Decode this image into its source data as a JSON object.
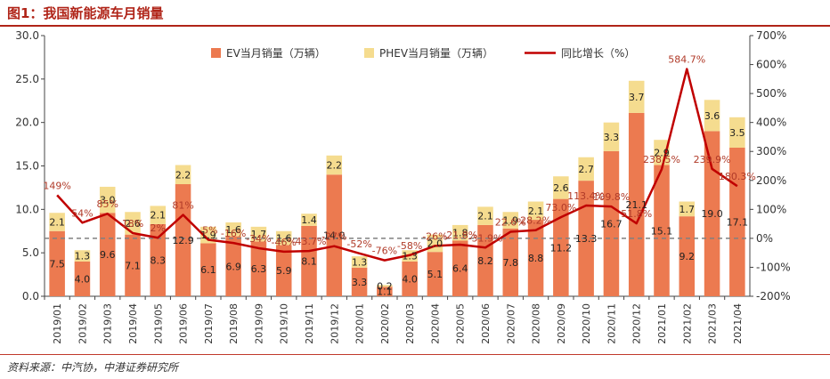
{
  "title": "图1：我国新能源车月销量",
  "source": "资料来源：中汽协，中港证券研究所",
  "colors": {
    "ev": "#ec7a50",
    "phev": "#f5dc8f",
    "growth": "#c00000",
    "zero_line": "#808080",
    "title": "#b02418"
  },
  "chart_data": {
    "type": "bar",
    "stacked": true,
    "categories": [
      "2019/01",
      "2019/02",
      "2019/03",
      "2019/04",
      "2019/05",
      "2019/06",
      "2019/07",
      "2019/08",
      "2019/09",
      "2019/10",
      "2019/11",
      "2019/12",
      "2020/01",
      "2020/02",
      "2020/03",
      "2020/04",
      "2020/05",
      "2020/06",
      "2020/07",
      "2020/08",
      "2020/09",
      "2020/10",
      "2020/11",
      "2020/12",
      "2021/01",
      "2021/02",
      "2021/03",
      "2021/04"
    ],
    "series": [
      {
        "name": "EV当月销量（万辆）",
        "type": "bar",
        "axis": "left",
        "values": [
          7.5,
          4.0,
          9.6,
          7.1,
          8.3,
          12.9,
          6.1,
          6.9,
          6.3,
          5.9,
          8.1,
          14.0,
          3.3,
          1.1,
          4.0,
          5.1,
          6.4,
          8.2,
          7.8,
          8.8,
          11.2,
          13.3,
          16.7,
          21.1,
          15.1,
          9.2,
          19.0,
          17.1
        ],
        "labels": [
          "7.5",
          "4.0",
          "9.6",
          "7.1",
          "8.3",
          "12.9",
          "6.1",
          "6.9",
          "6.3",
          "5.9",
          "8.1",
          "14.0",
          "3.3",
          "1.1",
          "4.0",
          "5.1",
          "6.4",
          "8.2",
          "7.8",
          "8.8",
          "11.2",
          "13.3",
          "16.7",
          "21.1",
          "15.1",
          "9.2",
          "19.0",
          "17.1"
        ]
      },
      {
        "name": "PHEV当月销量（万辆）",
        "type": "bar",
        "axis": "left",
        "values": [
          2.1,
          1.3,
          3.0,
          2.6,
          2.1,
          2.2,
          1.9,
          1.6,
          1.7,
          1.6,
          1.4,
          2.2,
          1.3,
          0.2,
          1.3,
          2.0,
          1.8,
          2.1,
          1.9,
          2.1,
          2.6,
          2.7,
          3.3,
          3.7,
          2.9,
          1.7,
          3.6,
          3.5
        ],
        "labels": [
          "2.1",
          "1.3",
          "3.0",
          "2.6",
          "2.1",
          "2.2",
          "1.9",
          "1.6",
          "1.7",
          "1.6",
          "1.4",
          "2.2",
          "1.3",
          "0.2",
          "1.3",
          "2.0",
          "1.8",
          "2.1",
          "1.9",
          "2.1",
          "2.6",
          "2.7",
          "3.3",
          "3.7",
          "2.9",
          "1.7",
          "3.6",
          "3.5"
        ]
      },
      {
        "name": "同比增长（%）",
        "type": "line",
        "axis": "right",
        "values": [
          149,
          54,
          85,
          18,
          2,
          81,
          -5,
          -16,
          -34,
          -46,
          -43.7,
          -27,
          -52,
          -76,
          -58,
          -26,
          -21.8,
          -31.9,
          22.6,
          28.2,
          73.0,
          113.4,
          109.8,
          51.8,
          238.5,
          584.7,
          239.9,
          180.3
        ],
        "labels": [
          "149%",
          "54%",
          "85%",
          "18%",
          "2%",
          "81%",
          "-5%",
          "-16%",
          "-34%",
          "-46%",
          "-43.7%",
          "-27%",
          "-52%",
          "-76%",
          "-58%",
          "-26%",
          "-21.8%",
          "-31.9%",
          "22.6%",
          "28.2%",
          "73.0%",
          "113.4%",
          "109.8%",
          "51.8%",
          "238.5%",
          "584.7%",
          "239.9%",
          "180.3%"
        ]
      }
    ],
    "y_left": {
      "ylim": [
        0,
        30
      ],
      "ticks": [
        "0.0",
        "5.0",
        "10.0",
        "15.0",
        "20.0",
        "25.0",
        "30.0"
      ]
    },
    "y_right": {
      "ylim": [
        -200,
        700
      ],
      "ticks": [
        "-200%",
        "-100%",
        "0%",
        "100%",
        "200%",
        "300%",
        "400%",
        "500%",
        "600%",
        "700%"
      ]
    },
    "zero_line": "dashed at 0% of right axis",
    "legend_position": "top",
    "grid": false
  }
}
